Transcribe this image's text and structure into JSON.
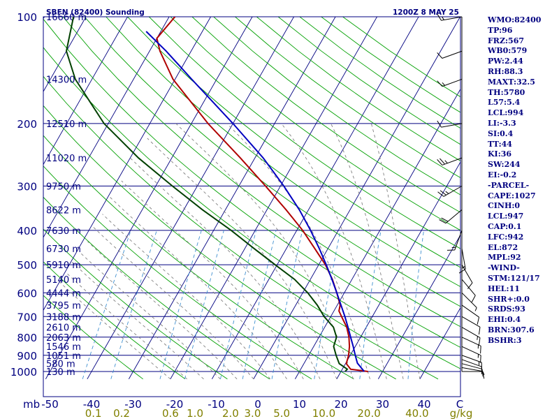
{
  "chart_data": {
    "type": "skew-t",
    "title": "SBFN (82400) Sounding",
    "valid_time": "1200Z  8 MAY 25",
    "pressure_ticks": [
      "100",
      "200",
      "300",
      "400",
      "500",
      "600",
      "700",
      "800",
      "900",
      "1000"
    ],
    "bottom_axis_prefix": "mb",
    "temperature_ticks": [
      "-50",
      "-40",
      "-30",
      "-20",
      "-10",
      "0",
      "10",
      "20",
      "30",
      "40",
      "C"
    ],
    "mixing_ratio_ticks": [
      "0.1",
      "0.2",
      "0.6",
      "1.0",
      "2.0",
      "3.0",
      "5.0",
      "10.0",
      "20.0",
      "40.0",
      "g/kg"
    ],
    "height_labels": [
      {
        "p": 100,
        "label": "16660 m"
      },
      {
        "p": 150,
        "label": "14300 m"
      },
      {
        "p": 200,
        "label": "12510 m"
      },
      {
        "p": 250,
        "label": "11020 m"
      },
      {
        "p": 300,
        "label": "9750 m"
      },
      {
        "p": 350,
        "label": "8622 m"
      },
      {
        "p": 400,
        "label": "7630 m"
      },
      {
        "p": 450,
        "label": "6730 m"
      },
      {
        "p": 500,
        "label": "5910 m"
      },
      {
        "p": 550,
        "label": "5140 m"
      },
      {
        "p": 600,
        "label": "4444 m"
      },
      {
        "p": 650,
        "label": "3795 m"
      },
      {
        "p": 700,
        "label": "3188 m"
      },
      {
        "p": 750,
        "label": "2610 m"
      },
      {
        "p": 800,
        "label": "2063 m"
      },
      {
        "p": 850,
        "label": "1546 m"
      },
      {
        "p": 900,
        "label": "1051 m"
      },
      {
        "p": 950,
        "label": "580 m"
      },
      {
        "p": 1000,
        "label": "130 m"
      }
    ],
    "series": [
      {
        "name": "Temperature",
        "color": "#b00000",
        "points": [
          [
            1000,
            26.5
          ],
          [
            985,
            22
          ],
          [
            950,
            20.2
          ],
          [
            900,
            19.6
          ],
          [
            850,
            18.6
          ],
          [
            800,
            17.2
          ],
          [
            750,
            15.3
          ],
          [
            700,
            12.6
          ],
          [
            675,
            11.2
          ],
          [
            650,
            10.7
          ],
          [
            600,
            8.2
          ],
          [
            550,
            5.3
          ],
          [
            500,
            1.6
          ],
          [
            450,
            -3.2
          ],
          [
            400,
            -8.6
          ],
          [
            350,
            -15.4
          ],
          [
            300,
            -23.6
          ],
          [
            250,
            -33.5
          ],
          [
            200,
            -46
          ],
          [
            150,
            -60.5
          ],
          [
            125,
            -67.5
          ],
          [
            115,
            -70
          ],
          [
            100,
            -68.6
          ]
        ]
      },
      {
        "name": "Dewpoint",
        "color": "#004000",
        "points": [
          [
            1000,
            21
          ],
          [
            985,
            21.2
          ],
          [
            950,
            18.5
          ],
          [
            900,
            16.6
          ],
          [
            850,
            14.8
          ],
          [
            800,
            14.2
          ],
          [
            750,
            12.1
          ],
          [
            700,
            8.4
          ],
          [
            650,
            5.2
          ],
          [
            600,
            1.2
          ],
          [
            550,
            -3.8
          ],
          [
            500,
            -10.5
          ],
          [
            450,
            -17.8
          ],
          [
            400,
            -25.8
          ],
          [
            350,
            -35.5
          ],
          [
            300,
            -46
          ],
          [
            250,
            -58
          ],
          [
            200,
            -71
          ],
          [
            150,
            -84
          ],
          [
            125,
            -90
          ],
          [
            100,
            -93
          ]
        ]
      },
      {
        "name": "Parcel",
        "color": "#0000c0",
        "points": [
          [
            1000,
            25.6
          ],
          [
            947,
            22.8
          ],
          [
            900,
            21.2
          ],
          [
            850,
            19.5
          ],
          [
            800,
            17.6
          ],
          [
            750,
            15.6
          ],
          [
            700,
            13.4
          ],
          [
            650,
            10.9
          ],
          [
            600,
            8.2
          ],
          [
            550,
            5.2
          ],
          [
            500,
            1.8
          ],
          [
            450,
            -2.1
          ],
          [
            400,
            -6.7
          ],
          [
            350,
            -12.2
          ],
          [
            300,
            -19.2
          ],
          [
            250,
            -28
          ],
          [
            200,
            -40
          ],
          [
            150,
            -56
          ],
          [
            125,
            -66
          ],
          [
            110,
            -73.5
          ]
        ]
      }
    ],
    "winds": [
      [
        1000,
        90,
        5
      ],
      [
        975,
        100,
        10
      ],
      [
        950,
        105,
        10
      ],
      [
        925,
        110,
        10
      ],
      [
        900,
        110,
        15
      ],
      [
        850,
        115,
        15
      ],
      [
        800,
        115,
        15
      ],
      [
        750,
        120,
        15
      ],
      [
        700,
        120,
        10
      ],
      [
        650,
        125,
        10
      ],
      [
        600,
        135,
        5
      ],
      [
        550,
        140,
        10
      ],
      [
        500,
        150,
        10
      ],
      [
        450,
        170,
        15
      ],
      [
        400,
        200,
        15
      ],
      [
        350,
        230,
        20
      ],
      [
        300,
        240,
        25
      ],
      [
        250,
        250,
        25
      ],
      [
        200,
        260,
        10
      ],
      [
        150,
        250,
        15
      ],
      [
        125,
        250,
        10
      ],
      [
        100,
        260,
        15
      ]
    ],
    "indices": [
      "WMO:82400",
      "TP:96",
      "FRZ:567",
      "WB0:579",
      "PW:2.44",
      "RH:88.3",
      "MAXT:32.5",
      "TH:5780",
      "L57:5.4",
      "LCL:994",
      "LI:-3.3",
      "SI:0.4",
      "TT:44",
      "KI:36",
      "SW:244",
      "EI:-0.2",
      "-PARCEL-",
      "CAPE:1027",
      "CINH:0",
      "LCL:947",
      "CAP:0.1",
      "LFC:942",
      "EL:872",
      "MPL:92",
      "-WIND-",
      "STM:121/17",
      "HEL:11",
      "SHR+:0.0",
      "SRDS:93",
      "EHI:0.4",
      "BRN:307.6",
      "BSHR:3"
    ],
    "xlim": [
      -50,
      50
    ],
    "ylim": [
      1050,
      100
    ],
    "grid": true,
    "colors": {
      "axis": "#000080",
      "isotherm": "#000080",
      "dry_adiabat": "#00a000",
      "moist_adiabat": "#808080",
      "mixing_ratio": "#4090d0",
      "ticks_bottom": "#808000"
    }
  }
}
